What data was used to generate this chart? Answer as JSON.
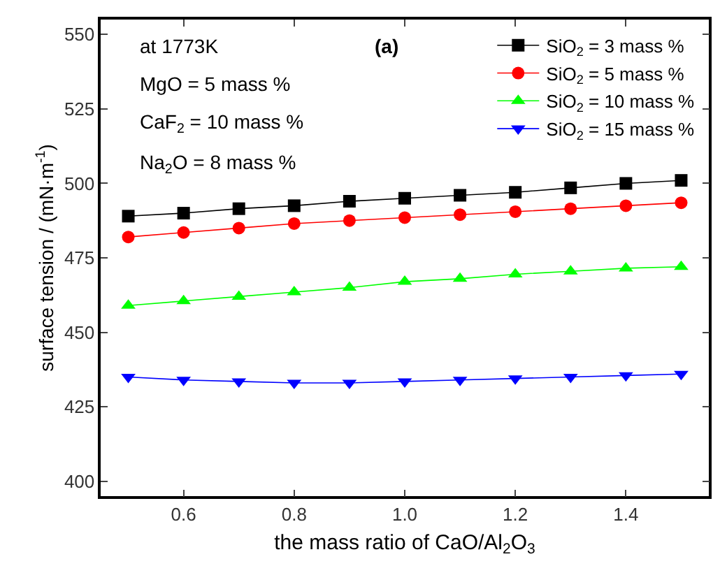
{
  "chart_data": {
    "type": "line",
    "xlabel": "the mass ratio of CaO/Al$_{2}$O$_{3}$",
    "ylabel": "surface tension / (mN·m$^{-1}$)",
    "x": [
      0.5,
      0.6,
      0.7,
      0.8,
      0.9,
      1.0,
      1.1,
      1.2,
      1.3,
      1.4,
      1.5
    ],
    "series": [
      {
        "name": "SiO$_{2}$ = 3 mass %",
        "color": "#000000",
        "marker": "square",
        "values": [
          489,
          490,
          491.5,
          492.5,
          494,
          495,
          496,
          497,
          498.5,
          500,
          501
        ]
      },
      {
        "name": "SiO$_{2}$ = 5 mass %",
        "color": "#ff0000",
        "marker": "circle",
        "values": [
          482,
          483.5,
          485,
          486.5,
          487.5,
          488.5,
          489.5,
          490.5,
          491.5,
          492.5,
          493.5
        ]
      },
      {
        "name": "SiO$_{2}$ = 10 mass %",
        "color": "#00ff00",
        "marker": "triangle",
        "values": [
          459,
          460.5,
          462,
          463.5,
          465,
          467,
          468,
          469.5,
          470.5,
          471.5,
          472
        ]
      },
      {
        "name": "SiO$_{2}$ = 15 mass %",
        "color": "#0000ff",
        "marker": "triangle-down",
        "values": [
          435,
          434,
          433.5,
          433,
          433,
          433.5,
          434,
          434.5,
          435,
          435.5,
          436
        ]
      }
    ],
    "xlim": [
      0.45,
      1.55
    ],
    "xticks": [
      0.6,
      0.8,
      {
        "value": 1.0,
        "label": "1.0"
      },
      1.2,
      1.4
    ],
    "ylim": [
      395,
      555
    ],
    "yticks": [
      400,
      425,
      450,
      475,
      500,
      525,
      550
    ],
    "annotations": [
      "at 1773K",
      "MgO = 5 mass %",
      "CaF$_{2}$ = 10 mass %",
      "Na$_{2}$O = 8 mass %",
      "(a)"
    ],
    "legend": "top right",
    "grid": false,
    "line_style": "solid"
  }
}
